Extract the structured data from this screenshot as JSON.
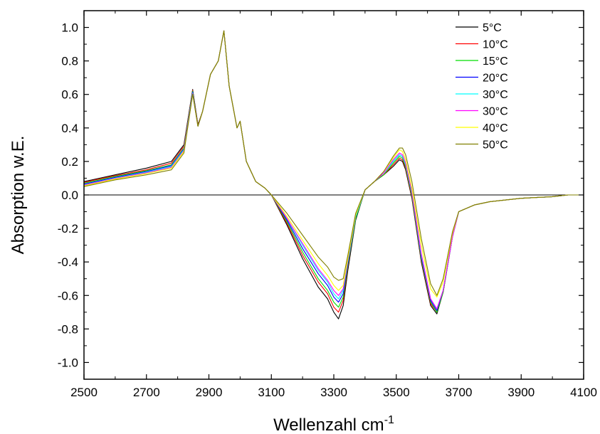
{
  "chart_data": {
    "type": "line",
    "title": "",
    "xlabel": "Wellenzahl cm",
    "xlabel_sup": "-1",
    "ylabel": "Absorption w.E.",
    "xlim": [
      2500,
      4100
    ],
    "ylim": [
      -1.1,
      1.1
    ],
    "x_ticks": [
      2500,
      2700,
      2900,
      3100,
      3300,
      3500,
      3700,
      3900,
      4100
    ],
    "x_tick_labels": [
      "2500",
      "2700",
      "2900",
      "3100",
      "3300",
      "3500",
      "3700",
      "3900",
      "4100"
    ],
    "y_ticks": [
      -1.0,
      -0.8,
      -0.6,
      -0.4,
      -0.2,
      0.0,
      0.2,
      0.4,
      0.6,
      0.8,
      1.0
    ],
    "y_tick_labels": [
      "-1.0",
      "-0.8",
      "-0.6",
      "-0.4",
      "-0.2",
      "0.0",
      "0.2",
      "0.4",
      "0.6",
      "0.8",
      "1.0"
    ],
    "zero_line": true,
    "grid": false,
    "legend_position": "top-right",
    "x": [
      2500,
      2600,
      2700,
      2780,
      2820,
      2848,
      2865,
      2880,
      2905,
      2930,
      2948,
      2965,
      2990,
      3000,
      3020,
      3050,
      3080,
      3100,
      3150,
      3200,
      3250,
      3280,
      3300,
      3315,
      3330,
      3345,
      3370,
      3400,
      3430,
      3460,
      3490,
      3510,
      3520,
      3530,
      3550,
      3580,
      3610,
      3630,
      3650,
      3680,
      3700,
      3750,
      3800,
      3900,
      4000,
      4050,
      4100
    ],
    "series": [
      {
        "name": "5°C",
        "color": "#000000",
        "values": [
          0.08,
          0.12,
          0.16,
          0.2,
          0.3,
          0.63,
          0.42,
          0.5,
          0.72,
          0.8,
          0.98,
          0.65,
          0.4,
          0.44,
          0.2,
          0.08,
          0.04,
          0.0,
          -0.18,
          -0.38,
          -0.55,
          -0.62,
          -0.7,
          -0.74,
          -0.66,
          -0.45,
          -0.15,
          0.03,
          0.08,
          0.12,
          0.17,
          0.21,
          0.2,
          0.15,
          -0.02,
          -0.4,
          -0.66,
          -0.71,
          -0.58,
          -0.25,
          -0.1,
          -0.06,
          -0.04,
          -0.02,
          -0.01,
          0.0,
          0.0
        ]
      },
      {
        "name": "10°C",
        "color": "#ff0000",
        "values": [
          0.075,
          0.115,
          0.15,
          0.19,
          0.29,
          0.625,
          0.415,
          0.5,
          0.72,
          0.8,
          0.98,
          0.65,
          0.4,
          0.44,
          0.2,
          0.08,
          0.04,
          0.0,
          -0.17,
          -0.36,
          -0.52,
          -0.59,
          -0.67,
          -0.7,
          -0.63,
          -0.43,
          -0.14,
          0.03,
          0.08,
          0.12,
          0.18,
          0.22,
          0.21,
          0.16,
          -0.01,
          -0.39,
          -0.65,
          -0.7,
          -0.58,
          -0.25,
          -0.1,
          -0.06,
          -0.04,
          -0.02,
          -0.01,
          0.0,
          0.0
        ]
      },
      {
        "name": "15°C",
        "color": "#00dd00",
        "values": [
          0.07,
          0.11,
          0.145,
          0.18,
          0.28,
          0.62,
          0.41,
          0.5,
          0.72,
          0.8,
          0.98,
          0.65,
          0.4,
          0.44,
          0.2,
          0.08,
          0.04,
          0.0,
          -0.16,
          -0.34,
          -0.5,
          -0.57,
          -0.64,
          -0.67,
          -0.61,
          -0.42,
          -0.14,
          0.03,
          0.08,
          0.12,
          0.19,
          0.23,
          0.22,
          0.17,
          0.0,
          -0.38,
          -0.64,
          -0.7,
          -0.58,
          -0.25,
          -0.1,
          -0.06,
          -0.04,
          -0.02,
          -0.01,
          0.0,
          0.0
        ]
      },
      {
        "name": "20°C",
        "color": "#0000ff",
        "values": [
          0.065,
          0.105,
          0.14,
          0.175,
          0.275,
          0.615,
          0.41,
          0.5,
          0.72,
          0.8,
          0.98,
          0.65,
          0.4,
          0.44,
          0.2,
          0.08,
          0.04,
          0.0,
          -0.15,
          -0.32,
          -0.47,
          -0.54,
          -0.61,
          -0.64,
          -0.59,
          -0.41,
          -0.13,
          0.03,
          0.08,
          0.13,
          0.2,
          0.24,
          0.23,
          0.18,
          0.01,
          -0.37,
          -0.63,
          -0.69,
          -0.57,
          -0.25,
          -0.1,
          -0.06,
          -0.04,
          -0.02,
          -0.01,
          0.0,
          0.0
        ]
      },
      {
        "name": "30°C",
        "color": "#00ffff",
        "values": [
          0.06,
          0.1,
          0.135,
          0.17,
          0.27,
          0.61,
          0.41,
          0.5,
          0.72,
          0.8,
          0.98,
          0.65,
          0.4,
          0.44,
          0.2,
          0.08,
          0.04,
          0.0,
          -0.14,
          -0.3,
          -0.45,
          -0.52,
          -0.59,
          -0.62,
          -0.57,
          -0.4,
          -0.13,
          0.03,
          0.08,
          0.13,
          0.2,
          0.24,
          0.23,
          0.18,
          0.01,
          -0.36,
          -0.62,
          -0.68,
          -0.57,
          -0.25,
          -0.1,
          -0.06,
          -0.04,
          -0.02,
          -0.01,
          0.0,
          0.0
        ]
      },
      {
        "name": "30°C",
        "color": "#ff00ff",
        "values": [
          0.058,
          0.098,
          0.132,
          0.165,
          0.265,
          0.605,
          0.41,
          0.5,
          0.72,
          0.8,
          0.98,
          0.65,
          0.4,
          0.44,
          0.2,
          0.08,
          0.04,
          0.0,
          -0.14,
          -0.29,
          -0.44,
          -0.51,
          -0.57,
          -0.6,
          -0.56,
          -0.39,
          -0.12,
          0.03,
          0.08,
          0.13,
          0.21,
          0.25,
          0.24,
          0.19,
          0.02,
          -0.35,
          -0.62,
          -0.68,
          -0.57,
          -0.25,
          -0.1,
          -0.06,
          -0.04,
          -0.02,
          -0.01,
          0.0,
          0.0
        ]
      },
      {
        "name": "40°C",
        "color": "#ffff00",
        "values": [
          0.055,
          0.095,
          0.128,
          0.16,
          0.26,
          0.6,
          0.41,
          0.5,
          0.72,
          0.8,
          0.98,
          0.65,
          0.4,
          0.44,
          0.2,
          0.08,
          0.04,
          0.0,
          -0.13,
          -0.27,
          -0.41,
          -0.48,
          -0.54,
          -0.57,
          -0.54,
          -0.38,
          -0.12,
          0.03,
          0.08,
          0.14,
          0.22,
          0.27,
          0.26,
          0.21,
          0.04,
          -0.3,
          -0.56,
          -0.61,
          -0.52,
          -0.23,
          -0.1,
          -0.06,
          -0.04,
          -0.02,
          -0.01,
          0.0,
          0.0
        ]
      },
      {
        "name": "50°C",
        "color": "#808000",
        "values": [
          0.05,
          0.09,
          0.12,
          0.15,
          0.25,
          0.6,
          0.41,
          0.5,
          0.72,
          0.8,
          0.98,
          0.65,
          0.4,
          0.44,
          0.2,
          0.08,
          0.04,
          0.0,
          -0.11,
          -0.24,
          -0.37,
          -0.43,
          -0.49,
          -0.51,
          -0.5,
          -0.36,
          -0.11,
          0.03,
          0.08,
          0.14,
          0.23,
          0.28,
          0.28,
          0.24,
          0.08,
          -0.26,
          -0.53,
          -0.6,
          -0.5,
          -0.22,
          -0.1,
          -0.06,
          -0.04,
          -0.02,
          -0.01,
          0.0,
          0.0
        ]
      }
    ]
  }
}
